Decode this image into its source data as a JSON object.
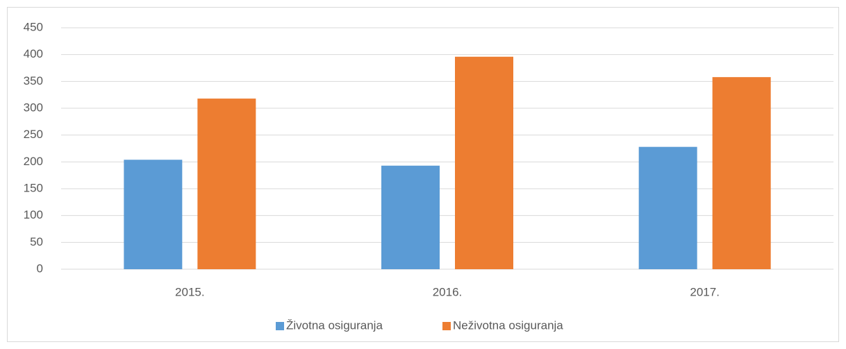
{
  "chart_data": {
    "type": "bar",
    "categories": [
      "2015.",
      "2016.",
      "2017."
    ],
    "series": [
      {
        "name": "Životna osiguranja",
        "color": "#5b9bd5",
        "values": [
          204,
          193,
          228
        ]
      },
      {
        "name": "Neživotna osiguranja",
        "color": "#ed7d31",
        "values": [
          318,
          396,
          358
        ]
      }
    ],
    "ylim": [
      0,
      450
    ],
    "yticks": [
      0,
      50,
      100,
      150,
      200,
      250,
      300,
      350,
      400,
      450
    ],
    "grid": true,
    "legend": "bottom"
  }
}
